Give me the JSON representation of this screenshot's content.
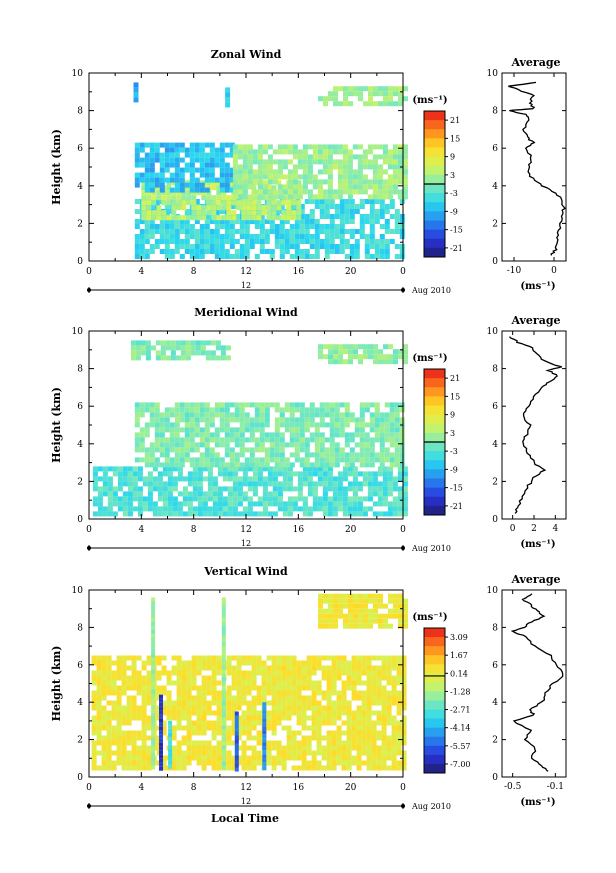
{
  "figure": {
    "x_label": "Local Time",
    "date_label": "Aug 2010",
    "day_label": "12"
  },
  "chart_data": [
    {
      "type": "heatmap",
      "title": "Zonal Wind",
      "ylabel": "Height (km)",
      "ylim": [
        0,
        10
      ],
      "x_ticks": [
        "0",
        "4",
        "8",
        "12",
        "16",
        "20",
        "0"
      ],
      "y_ticks": [
        "0",
        "2",
        "4",
        "6",
        "8",
        "10"
      ],
      "colorbar": {
        "unit": "(ms⁻¹)",
        "ticks": [
          "21",
          "15",
          "9",
          "3",
          "-3",
          "-9",
          "-15",
          "-21"
        ],
        "range": [
          -24,
          24
        ]
      },
      "fields": [
        {
          "x": [
            3.5,
            24
          ],
          "y": [
            0.3,
            3.3
          ],
          "v": -5
        },
        {
          "x": [
            4,
            16
          ],
          "y": [
            2.2,
            4.3
          ],
          "v": 4
        },
        {
          "x": [
            3.5,
            11
          ],
          "y": [
            3.8,
            6.3
          ],
          "v": -8
        },
        {
          "x": [
            11,
            24
          ],
          "y": [
            3.5,
            6.2
          ],
          "v": 2
        },
        {
          "x": [
            3.4,
            3.7
          ],
          "y": [
            8.7,
            9.5
          ],
          "v": -10
        },
        {
          "x": [
            10.4,
            10.6
          ],
          "y": [
            8.4,
            9.5
          ],
          "v": -6
        },
        {
          "x": [
            17.5,
            24
          ],
          "y": [
            8.4,
            9.3
          ],
          "v": 2
        }
      ],
      "profile": {
        "title": "Average",
        "xlabel": "(ms⁻¹)",
        "xlim": [
          -13,
          3
        ],
        "x_ticks": [
          "-10",
          "0"
        ],
        "heights": [
          0.3,
          0.6,
          1.0,
          1.5,
          2.0,
          2.5,
          2.9,
          3.3,
          3.7,
          4.1,
          4.5,
          5.0,
          5.5,
          6.0,
          6.3,
          6.6,
          7.0,
          7.5,
          7.8,
          8.0,
          8.1,
          8.4,
          8.8,
          9.1,
          9.3,
          9.5
        ],
        "values": [
          -0.5,
          0.3,
          0.8,
          1.2,
          1.8,
          2.2,
          2.5,
          1.8,
          -0.5,
          -3.5,
          -5.8,
          -6.5,
          -5.5,
          -7.0,
          -5.2,
          -6.8,
          -7.5,
          -6.4,
          -7.2,
          -11.5,
          -5.0,
          -6.2,
          -5.0,
          -9.0,
          -11.0,
          -4.5
        ]
      }
    },
    {
      "type": "heatmap",
      "title": "Meridional Wind",
      "ylabel": "Height (km)",
      "ylim": [
        0,
        10
      ],
      "x_ticks": [
        "0",
        "4",
        "8",
        "12",
        "16",
        "20",
        "0"
      ],
      "y_ticks": [
        "0",
        "2",
        "4",
        "6",
        "8",
        "10"
      ],
      "colorbar": {
        "unit": "(ms⁻¹)",
        "ticks": [
          "21",
          "15",
          "9",
          "3",
          "-3",
          "-9",
          "-15",
          "-21"
        ],
        "range": [
          -24,
          24
        ]
      },
      "fields": [
        {
          "x": [
            0.3,
            24
          ],
          "y": [
            0.3,
            2.8
          ],
          "v": -3
        },
        {
          "x": [
            3.5,
            24
          ],
          "y": [
            2.8,
            6.2
          ],
          "v": 0
        },
        {
          "x": [
            3.2,
            10.5
          ],
          "y": [
            8.7,
            9.5
          ],
          "v": 0
        },
        {
          "x": [
            17.5,
            24
          ],
          "y": [
            8.4,
            9.3
          ],
          "v": 1
        }
      ],
      "profile": {
        "title": "Average",
        "xlabel": "(ms⁻¹)",
        "xlim": [
          -1,
          5
        ],
        "x_ticks": [
          "0",
          "2",
          "4"
        ],
        "heights": [
          0.3,
          0.7,
          1.2,
          1.8,
          2.2,
          2.6,
          3.0,
          3.5,
          4.0,
          4.5,
          5.0,
          5.5,
          6.0,
          6.5,
          7.0,
          7.3,
          7.6,
          7.9,
          8.1,
          8.4,
          8.8,
          9.1,
          9.4,
          9.7
        ],
        "values": [
          0.2,
          0.5,
          1.0,
          1.5,
          2.0,
          2.9,
          2.0,
          1.4,
          1.0,
          1.3,
          1.6,
          1.0,
          1.5,
          2.0,
          2.6,
          3.5,
          4.2,
          3.4,
          4.5,
          3.0,
          2.2,
          1.8,
          0.5,
          -0.3
        ]
      }
    },
    {
      "type": "heatmap",
      "title": "Vertical Wind",
      "ylabel": "Height (km)",
      "ylim": [
        0,
        10
      ],
      "x_ticks": [
        "0",
        "4",
        "8",
        "12",
        "16",
        "20",
        "0"
      ],
      "y_ticks": [
        "0",
        "2",
        "4",
        "6",
        "8",
        "10"
      ],
      "colorbar": {
        "unit": "(ms⁻¹)",
        "ticks": [
          "3.09",
          "1.67",
          "0.14",
          "-1.28",
          "-2.71",
          "-4.14",
          "-5.57",
          "-7.00"
        ],
        "range": [
          -7.7,
          3.8
        ]
      },
      "fields": [
        {
          "x": [
            0.2,
            24
          ],
          "y": [
            0.5,
            6.5
          ],
          "v": 0.3
        },
        {
          "x": [
            17.5,
            24
          ],
          "y": [
            8.0,
            9.8
          ],
          "v": 0.3
        }
      ],
      "streaks": [
        {
          "x": 5.5,
          "y": [
            0.5,
            4.4
          ],
          "v": -6.5
        },
        {
          "x": 6.2,
          "y": [
            0.5,
            3.0
          ],
          "v": -3.0
        },
        {
          "x": 11.3,
          "y": [
            0.5,
            3.5
          ],
          "v": -5.5
        },
        {
          "x": 13.4,
          "y": [
            0.5,
            4.0
          ],
          "v": -5.0
        },
        {
          "x": 4.9,
          "y": [
            0.5,
            9.6
          ],
          "v": -1.5
        },
        {
          "x": 10.3,
          "y": [
            0.5,
            9.6
          ],
          "v": -1.5
        }
      ],
      "profile": {
        "title": "Average",
        "xlabel": "(ms⁻¹)",
        "xlim": [
          -0.6,
          0
        ],
        "x_ticks": [
          "-0.5",
          "-0.1"
        ],
        "heights": [
          0.3,
          0.6,
          1.0,
          1.5,
          2.0,
          2.5,
          3.0,
          3.3,
          3.6,
          4.0,
          4.5,
          5.0,
          5.5,
          6.0,
          6.5,
          7.0,
          7.5,
          7.8,
          8.0,
          8.3,
          8.6,
          8.9,
          9.2,
          9.5,
          9.8
        ],
        "values": [
          -0.18,
          -0.22,
          -0.33,
          -0.28,
          -0.38,
          -0.32,
          -0.5,
          -0.3,
          -0.34,
          -0.22,
          -0.2,
          -0.12,
          -0.02,
          -0.08,
          -0.15,
          -0.3,
          -0.38,
          -0.5,
          -0.4,
          -0.32,
          -0.2,
          -0.28,
          -0.33,
          -0.4,
          -0.32
        ]
      }
    }
  ]
}
